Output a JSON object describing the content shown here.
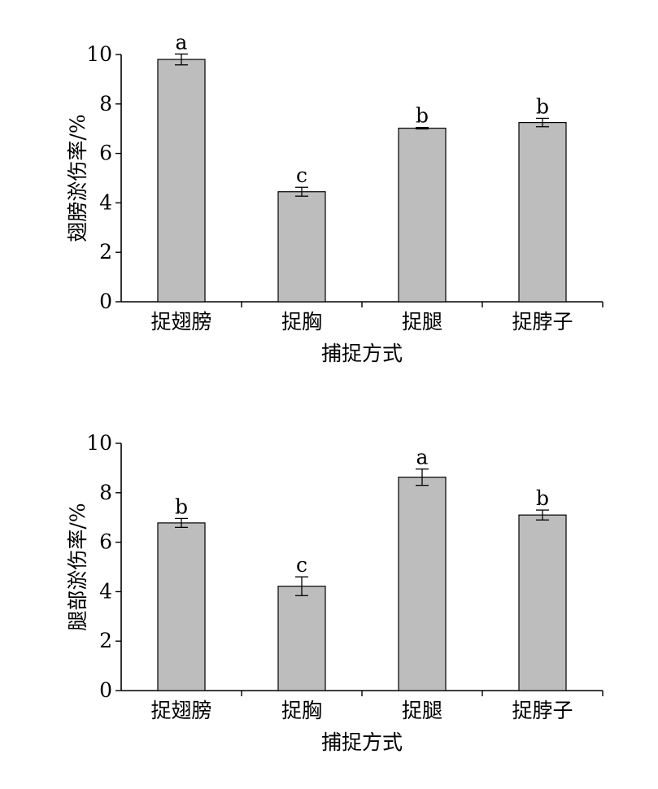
{
  "chart_data": [
    {
      "type": "bar",
      "categories": [
        "捉翅膀",
        "捉胸",
        "捉腿",
        "捉脖子"
      ],
      "values": [
        9.8,
        4.45,
        7.02,
        7.25
      ],
      "errors": [
        0.22,
        0.18,
        0.03,
        0.17
      ],
      "significance": [
        "a",
        "c",
        "b",
        "b"
      ],
      "xlabel": "捕捉方式",
      "ylabel": "翅膀淤伤率/%",
      "ylim": [
        0,
        10
      ],
      "yticks": [
        "0",
        "2",
        "4",
        "6",
        "8",
        "10"
      ],
      "grid": false,
      "bar_color": "#bdbdbd"
    },
    {
      "type": "bar",
      "categories": [
        "捉翅膀",
        "捉胸",
        "捉腿",
        "捉脖子"
      ],
      "values": [
        6.78,
        4.22,
        8.63,
        7.1
      ],
      "errors": [
        0.18,
        0.38,
        0.33,
        0.2
      ],
      "significance": [
        "b",
        "c",
        "a",
        "b"
      ],
      "xlabel": "捕捉方式",
      "ylabel": "腿部淤伤率/%",
      "ylim": [
        0,
        10
      ],
      "yticks": [
        "0",
        "2",
        "4",
        "6",
        "8",
        "10"
      ],
      "grid": false,
      "bar_color": "#bdbdbd"
    }
  ]
}
